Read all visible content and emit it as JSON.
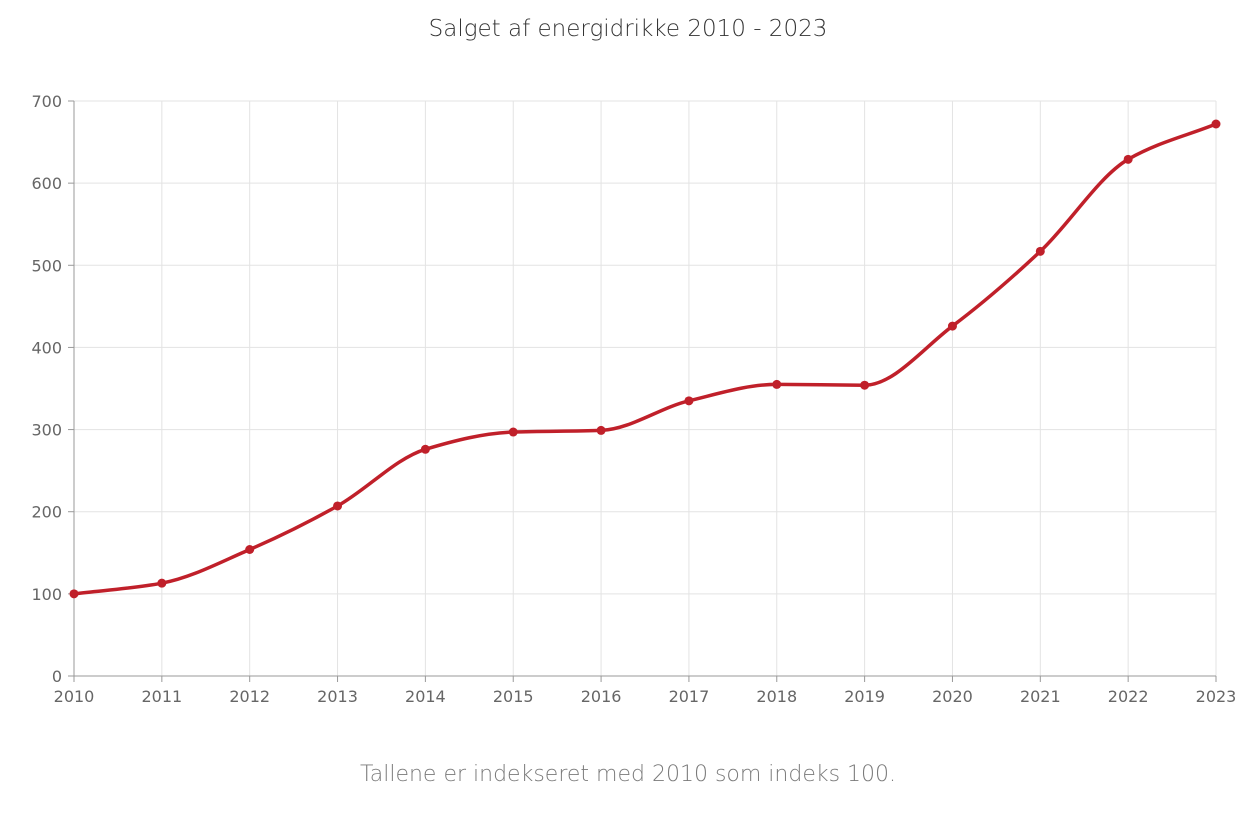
{
  "chart_data": {
    "type": "line",
    "title": "Salget af energidrikke 2010 - 2023",
    "caption": "Tallene er indekseret med 2010 som indeks 100.",
    "xlabel": "",
    "ylabel": "",
    "categories": [
      "2010",
      "2011",
      "2012",
      "2013",
      "2014",
      "2015",
      "2016",
      "2017",
      "2018",
      "2019",
      "2020",
      "2021",
      "2022",
      "2023"
    ],
    "series": [
      {
        "values": [
          100,
          113,
          154,
          207,
          276,
          297,
          299,
          335,
          355,
          354,
          426,
          517,
          629,
          672
        ],
        "color": "#c0202a"
      }
    ],
    "ylim": [
      0,
      700
    ],
    "yticks": [
      "0",
      "100",
      "200",
      "300",
      "400",
      "500",
      "600",
      "700"
    ],
    "grid": true,
    "legend": "none",
    "colors": {
      "line": "#c0202a",
      "grid": "#e3e3e3",
      "axis": "#999999",
      "text": "#666666"
    }
  }
}
